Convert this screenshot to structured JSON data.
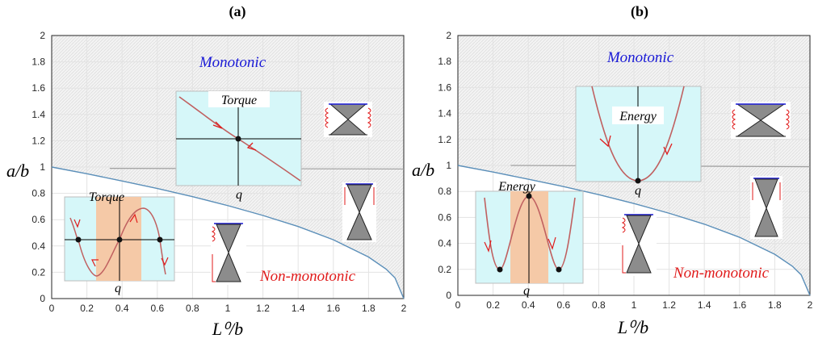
{
  "chart_data": [
    {
      "type": "line",
      "panel_label": "(a)",
      "xlabel": "L⁰/b",
      "ylabel": "a/b",
      "xlim": [
        0,
        2
      ],
      "ylim": [
        0,
        2
      ],
      "xticks": [
        "0",
        "0.2",
        "0.4",
        "0.6",
        "0.8",
        "1",
        "1.2",
        "1.4",
        "1.6",
        "1.8",
        "2"
      ],
      "yticks": [
        "0",
        "0.2",
        "0.4",
        "0.6",
        "0.8",
        "1",
        "1.2",
        "1.4",
        "1.6",
        "1.8",
        "2"
      ],
      "grid": true,
      "regions": {
        "upper": "Monotonic",
        "lower": "Non-monotonic",
        "upper_color": "#1a1ad6",
        "lower_color": "#e01b1b"
      },
      "series": [
        {
          "color": "#5b8fb9",
          "x": [
            0,
            0.2,
            0.4,
            0.6,
            0.8,
            1.0,
            1.2,
            1.4,
            1.6,
            1.8,
            1.9,
            1.95,
            2.0
          ],
          "y": [
            1.0,
            0.949,
            0.894,
            0.837,
            0.775,
            0.707,
            0.632,
            0.548,
            0.447,
            0.316,
            0.224,
            0.158,
            0.0
          ]
        },
        {
          "color": "#a0a0a0",
          "x": [
            0.33,
            2.0
          ],
          "y": [
            0.99,
            0.985
          ]
        }
      ],
      "insets": [
        {
          "title": "Torque",
          "axis_label": "q",
          "kind": "monotonic-torque"
        },
        {
          "title": "Torque",
          "axis_label": "q",
          "kind": "nonmonotonic-torque"
        }
      ]
    },
    {
      "type": "line",
      "panel_label": "(b)",
      "xlabel": "L⁰/b",
      "ylabel": "a/b",
      "xlim": [
        0,
        2
      ],
      "ylim": [
        0,
        2
      ],
      "xticks": [
        "0",
        "0.2",
        "0.4",
        "0.6",
        "0.8",
        "1",
        "1.2",
        "1.4",
        "1.6",
        "1.8",
        "2"
      ],
      "yticks": [
        "0",
        "0.2",
        "0.4",
        "0.6",
        "0.8",
        "1",
        "1.2",
        "1.4",
        "1.6",
        "1.8",
        "2"
      ],
      "grid": true,
      "regions": {
        "upper": "Monotonic",
        "lower": "Non-monotonic",
        "upper_color": "#1a1ad6",
        "lower_color": "#e01b1b"
      },
      "series": [
        {
          "color": "#5b8fb9",
          "x": [
            0,
            0.2,
            0.4,
            0.6,
            0.8,
            1.0,
            1.2,
            1.4,
            1.6,
            1.8,
            1.9,
            1.95,
            2.0
          ],
          "y": [
            1.0,
            0.949,
            0.894,
            0.837,
            0.775,
            0.707,
            0.632,
            0.548,
            0.447,
            0.316,
            0.224,
            0.158,
            0.0
          ]
        },
        {
          "color": "#a0a0a0",
          "x": [
            0.3,
            2.0
          ],
          "y": [
            1.0,
            0.99
          ]
        }
      ],
      "insets": [
        {
          "title": "Energy",
          "axis_label": "q",
          "kind": "monotonic-energy"
        },
        {
          "title": "Energy",
          "axis_label": "q",
          "kind": "nonmonotonic-energy"
        }
      ]
    }
  ]
}
